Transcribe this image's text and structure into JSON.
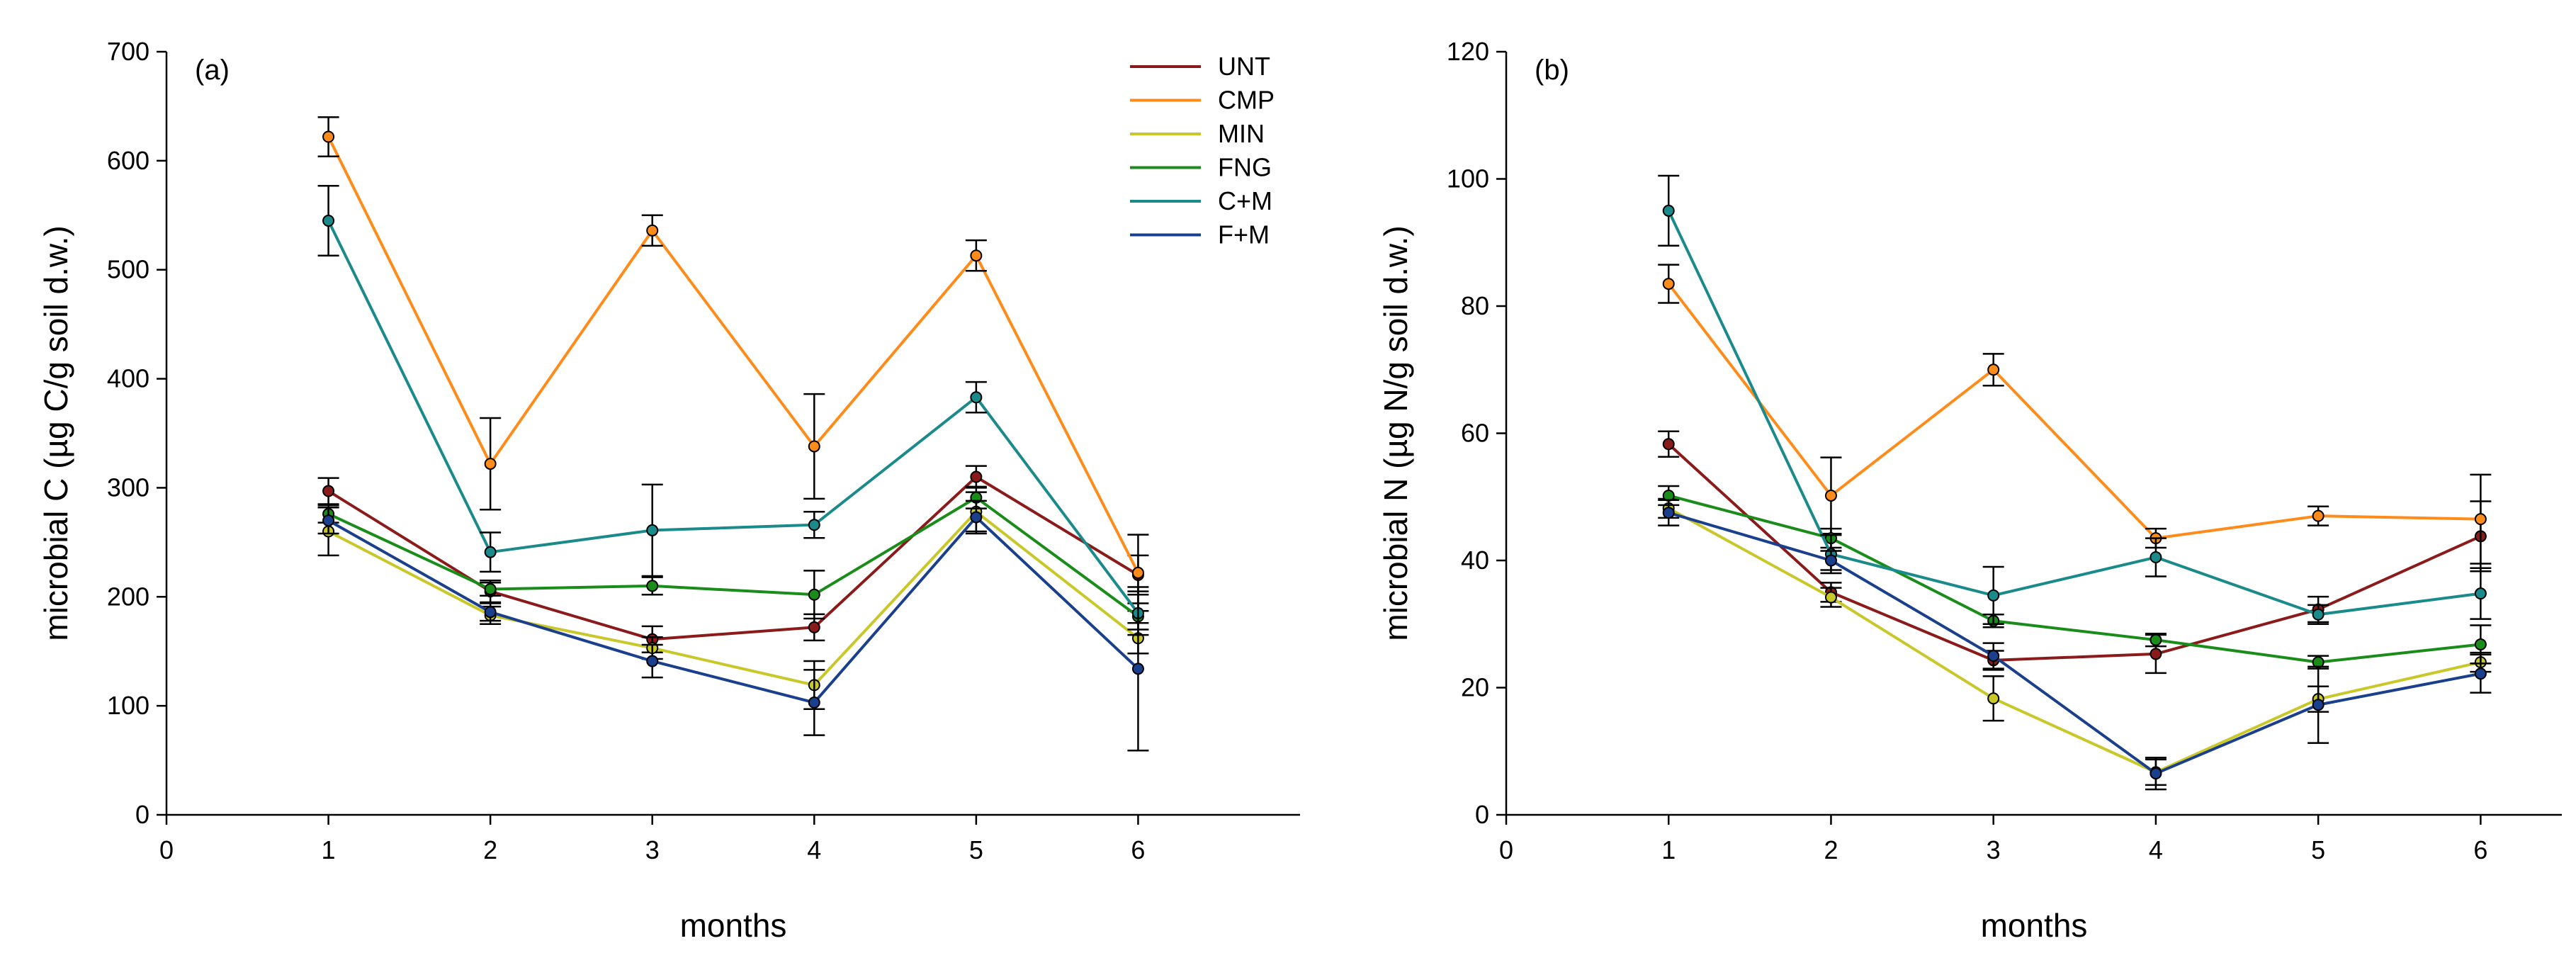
{
  "chart_data": [
    {
      "type": "line",
      "panel_label": "(a)",
      "xlabel": "months",
      "ylabel": "microbial C (µg C/g soil d.w.)",
      "xlim": [
        0,
        7
      ],
      "ylim": [
        0,
        700
      ],
      "xticks": [
        0,
        1,
        2,
        3,
        4,
        5,
        6
      ],
      "yticks": [
        0,
        100,
        200,
        300,
        400,
        500,
        600,
        700
      ],
      "x": [
        1,
        2,
        3,
        4,
        5,
        6
      ],
      "legend": "top-right",
      "series": [
        {
          "name": "UNT",
          "color": "#8b1a1a",
          "values": [
            297,
            205,
            161,
            172,
            310,
            220
          ],
          "errors": [
            12,
            10,
            12,
            12,
            10,
            18
          ]
        },
        {
          "name": "CMP",
          "color": "#ff8c1a",
          "values": [
            622,
            322,
            536,
            338,
            513,
            222
          ],
          "errors": [
            18,
            42,
            14,
            48,
            14,
            35
          ]
        },
        {
          "name": "MIN",
          "color": "#c8c82a",
          "values": [
            260,
            183,
            153,
            119,
            278,
            162
          ],
          "errors": [
            22,
            8,
            10,
            22,
            18,
            14
          ]
        },
        {
          "name": "FNG",
          "color": "#1a8c1a",
          "values": [
            276,
            207,
            210,
            202,
            291,
            182
          ],
          "errors": [
            8,
            6,
            8,
            22,
            10,
            12
          ]
        },
        {
          "name": "C+M",
          "color": "#1a8a8a",
          "values": [
            545,
            241,
            261,
            266,
            383,
            185
          ],
          "errors": [
            32,
            18,
            42,
            12,
            14,
            20
          ]
        },
        {
          "name": "F+M",
          "color": "#1a3f8c",
          "values": [
            270,
            186,
            141,
            103,
            273,
            134
          ],
          "errors": [
            12,
            8,
            15,
            30,
            15,
            75
          ]
        }
      ]
    },
    {
      "type": "line",
      "panel_label": "(b)",
      "xlabel": "months",
      "ylabel": "microbial N (µg N/g soil d.w.)",
      "xlim": [
        0,
        6.5
      ],
      "ylim": [
        0,
        120
      ],
      "xticks": [
        0,
        1,
        2,
        3,
        4,
        5,
        6
      ],
      "yticks": [
        0,
        20,
        40,
        60,
        80,
        100,
        120
      ],
      "x": [
        1,
        2,
        3,
        4,
        5,
        6
      ],
      "series": [
        {
          "name": "UNT",
          "color": "#8b1a1a",
          "values": [
            58.3,
            35,
            24.3,
            25.3,
            32.3,
            43.8
          ],
          "errors": [
            2,
            1.5,
            1.5,
            3,
            2,
            5.5
          ]
        },
        {
          "name": "CMP",
          "color": "#ff8c1a",
          "values": [
            83.5,
            50.2,
            70,
            43.5,
            47,
            46.5
          ],
          "errors": [
            3,
            6,
            2.5,
            1.5,
            1.5,
            7
          ]
        },
        {
          "name": "MIN",
          "color": "#c8c82a",
          "values": [
            48.2,
            34.2,
            18.3,
            6.7,
            18.2,
            24
          ],
          "errors": [
            1.5,
            1.5,
            3.5,
            2,
            2,
            1.5
          ]
        },
        {
          "name": "FNG",
          "color": "#1a8c1a",
          "values": [
            50.2,
            43.5,
            30.5,
            27.5,
            24,
            26.8
          ],
          "errors": [
            1.5,
            1.5,
            1,
            1,
            1,
            3
          ]
        },
        {
          "name": "C+M",
          "color": "#1a8a8a",
          "values": [
            95,
            41,
            34.5,
            40.5,
            31.5,
            34.8
          ],
          "errors": [
            5.5,
            3,
            4.5,
            3,
            1.5,
            4
          ]
        },
        {
          "name": "F+M",
          "color": "#1a3f8c",
          "values": [
            47.5,
            40,
            25,
            6.5,
            17.3,
            22.2
          ],
          "errors": [
            2,
            1.5,
            2,
            2.5,
            6,
            3
          ]
        }
      ]
    }
  ]
}
